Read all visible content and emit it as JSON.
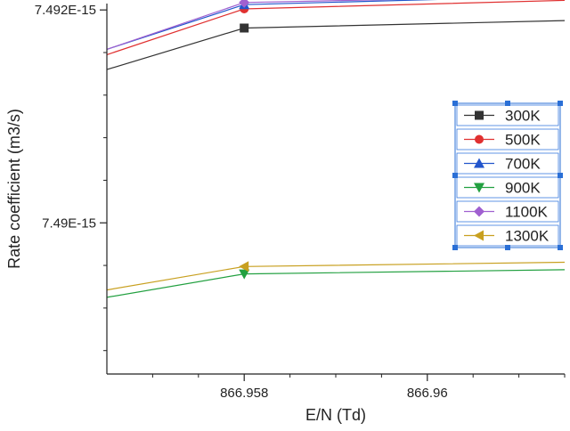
{
  "chart_data": {
    "type": "line",
    "title": "",
    "xlabel": "E/N (Td)",
    "ylabel": "Rate coefficient (m3/s)",
    "xlim": [
      866.9565,
      866.9615
    ],
    "ylim": [
      7.48858e-15,
      7.49206e-15
    ],
    "x_ticks": [
      866.958,
      866.96
    ],
    "x_tick_labels": [
      "866.958",
      "866.96"
    ],
    "y_ticks": [
      7.49e-15,
      7.492e-15
    ],
    "y_tick_labels": [
      "7.49E-15",
      "7.492E-15"
    ],
    "x": [
      866.9565,
      866.958,
      866.9615
    ],
    "series": [
      {
        "name": "300K",
        "marker": "square",
        "color": "#333333",
        "values": [
          7.49144e-15,
          7.49183e-15,
          7.4919e-15
        ]
      },
      {
        "name": "500K",
        "marker": "circle",
        "color": "#e03030",
        "values": [
          7.49158e-15,
          7.49201e-15,
          7.49209e-15
        ]
      },
      {
        "name": "700K",
        "marker": "triangle-up",
        "color": "#2255cc",
        "values": [
          7.49163e-15,
          7.49205e-15,
          7.49213e-15
        ]
      },
      {
        "name": "900K",
        "marker": "triangle-down",
        "color": "#22a040",
        "values": [
          7.4893e-15,
          7.48952e-15,
          7.48956e-15
        ]
      },
      {
        "name": "1100K",
        "marker": "diamond",
        "color": "#a060d0",
        "values": [
          7.49163e-15,
          7.49207e-15,
          7.49213e-15
        ]
      },
      {
        "name": "1300K",
        "marker": "triangle-left",
        "color": "#c8a020",
        "values": [
          7.48937e-15,
          7.48959e-15,
          7.48963e-15
        ]
      }
    ],
    "legend_position": "right",
    "grid": false
  }
}
